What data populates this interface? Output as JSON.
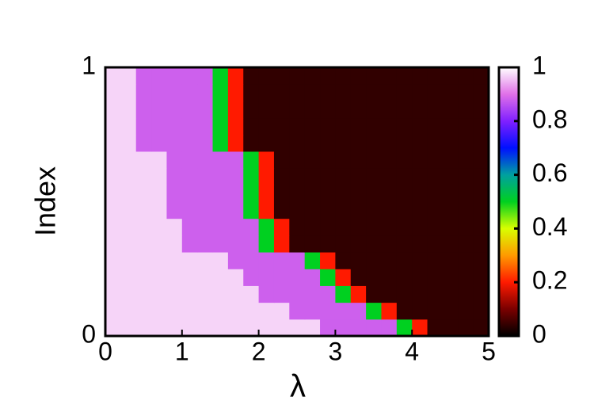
{
  "chart_data": {
    "type": "heatmap",
    "xlabel": "λ",
    "ylabel": "Index",
    "xlim": [
      0,
      5
    ],
    "xticks": [
      0,
      1,
      2,
      3,
      4,
      5
    ],
    "ylim": [
      0,
      1
    ],
    "yticks": [
      0,
      1
    ],
    "zlim": [
      0,
      1
    ],
    "zticks": [
      0,
      0.2,
      0.4,
      0.6,
      0.8,
      1
    ],
    "colormap": [
      "#000000",
      "#7a0000",
      "#ff1a00",
      "#ff9a00",
      "#d8ff00",
      "#00d020",
      "#00a0a0",
      "#0010ff",
      "#8020ff",
      "#e070e8",
      "#ffffff"
    ],
    "z": [
      [
        0.97,
        0.97,
        0.97,
        0.97,
        0.97,
        0.97,
        0.97,
        0.97,
        0.97,
        0.97,
        0.97,
        0.97,
        0.97,
        0.97,
        0.88,
        0.88,
        0.88,
        0.88,
        0.88,
        0.5,
        0.2,
        0.04,
        0.04,
        0.04,
        0.04
      ],
      [
        0.97,
        0.97,
        0.97,
        0.97,
        0.97,
        0.97,
        0.97,
        0.97,
        0.97,
        0.97,
        0.97,
        0.97,
        0.88,
        0.88,
        0.88,
        0.88,
        0.88,
        0.5,
        0.2,
        0.04,
        0.04,
        0.04,
        0.04,
        0.04,
        0.04
      ],
      [
        0.97,
        0.97,
        0.97,
        0.97,
        0.97,
        0.97,
        0.97,
        0.97,
        0.97,
        0.97,
        0.88,
        0.88,
        0.88,
        0.88,
        0.88,
        0.5,
        0.2,
        0.04,
        0.04,
        0.04,
        0.04,
        0.04,
        0.04,
        0.04,
        0.04
      ],
      [
        0.97,
        0.97,
        0.97,
        0.97,
        0.97,
        0.97,
        0.97,
        0.97,
        0.97,
        0.88,
        0.88,
        0.88,
        0.88,
        0.88,
        0.5,
        0.2,
        0.04,
        0.04,
        0.04,
        0.04,
        0.04,
        0.04,
        0.04,
        0.04,
        0.04
      ],
      [
        0.97,
        0.97,
        0.97,
        0.97,
        0.97,
        0.97,
        0.97,
        0.97,
        0.88,
        0.88,
        0.88,
        0.88,
        0.88,
        0.5,
        0.2,
        0.04,
        0.04,
        0.04,
        0.04,
        0.04,
        0.04,
        0.04,
        0.04,
        0.04,
        0.04
      ],
      [
        0.97,
        0.97,
        0.97,
        0.97,
        0.97,
        0.88,
        0.88,
        0.88,
        0.88,
        0.88,
        0.5,
        0.2,
        0.04,
        0.04,
        0.04,
        0.04,
        0.04,
        0.04,
        0.04,
        0.04,
        0.04,
        0.04,
        0.04,
        0.04,
        0.04
      ],
      [
        0.97,
        0.97,
        0.97,
        0.97,
        0.97,
        0.88,
        0.88,
        0.88,
        0.88,
        0.88,
        0.5,
        0.2,
        0.04,
        0.04,
        0.04,
        0.04,
        0.04,
        0.04,
        0.04,
        0.04,
        0.04,
        0.04,
        0.04,
        0.04,
        0.04
      ],
      [
        0.97,
        0.97,
        0.97,
        0.97,
        0.88,
        0.88,
        0.88,
        0.88,
        0.88,
        0.5,
        0.2,
        0.04,
        0.04,
        0.04,
        0.04,
        0.04,
        0.04,
        0.04,
        0.04,
        0.04,
        0.04,
        0.04,
        0.04,
        0.04,
        0.04
      ],
      [
        0.97,
        0.97,
        0.97,
        0.97,
        0.88,
        0.88,
        0.88,
        0.88,
        0.88,
        0.5,
        0.2,
        0.04,
        0.04,
        0.04,
        0.04,
        0.04,
        0.04,
        0.04,
        0.04,
        0.04,
        0.04,
        0.04,
        0.04,
        0.04,
        0.04
      ],
      [
        0.97,
        0.97,
        0.97,
        0.97,
        0.88,
        0.88,
        0.88,
        0.88,
        0.88,
        0.5,
        0.2,
        0.04,
        0.04,
        0.04,
        0.04,
        0.04,
        0.04,
        0.04,
        0.04,
        0.04,
        0.04,
        0.04,
        0.04,
        0.04,
        0.04
      ],
      [
        0.97,
        0.97,
        0.97,
        0.97,
        0.88,
        0.88,
        0.88,
        0.88,
        0.88,
        0.5,
        0.2,
        0.04,
        0.04,
        0.04,
        0.04,
        0.04,
        0.04,
        0.04,
        0.04,
        0.04,
        0.04,
        0.04,
        0.04,
        0.04,
        0.04
      ],
      [
        0.97,
        0.97,
        0.88,
        0.88,
        0.88,
        0.88,
        0.88,
        0.5,
        0.2,
        0.04,
        0.04,
        0.04,
        0.04,
        0.04,
        0.04,
        0.04,
        0.04,
        0.04,
        0.04,
        0.04,
        0.04,
        0.04,
        0.04,
        0.04,
        0.04
      ],
      [
        0.97,
        0.97,
        0.88,
        0.88,
        0.88,
        0.88,
        0.88,
        0.5,
        0.2,
        0.04,
        0.04,
        0.04,
        0.04,
        0.04,
        0.04,
        0.04,
        0.04,
        0.04,
        0.04,
        0.04,
        0.04,
        0.04,
        0.04,
        0.04,
        0.04
      ],
      [
        0.97,
        0.97,
        0.88,
        0.88,
        0.88,
        0.88,
        0.88,
        0.5,
        0.2,
        0.04,
        0.04,
        0.04,
        0.04,
        0.04,
        0.04,
        0.04,
        0.04,
        0.04,
        0.04,
        0.04,
        0.04,
        0.04,
        0.04,
        0.04,
        0.04
      ],
      [
        0.97,
        0.97,
        0.88,
        0.88,
        0.88,
        0.88,
        0.88,
        0.5,
        0.2,
        0.04,
        0.04,
        0.04,
        0.04,
        0.04,
        0.04,
        0.04,
        0.04,
        0.04,
        0.04,
        0.04,
        0.04,
        0.04,
        0.04,
        0.04,
        0.04
      ],
      [
        0.97,
        0.97,
        0.88,
        0.88,
        0.88,
        0.88,
        0.88,
        0.5,
        0.2,
        0.04,
        0.04,
        0.04,
        0.04,
        0.04,
        0.04,
        0.04,
        0.04,
        0.04,
        0.04,
        0.04,
        0.04,
        0.04,
        0.04,
        0.04,
        0.04
      ]
    ]
  }
}
